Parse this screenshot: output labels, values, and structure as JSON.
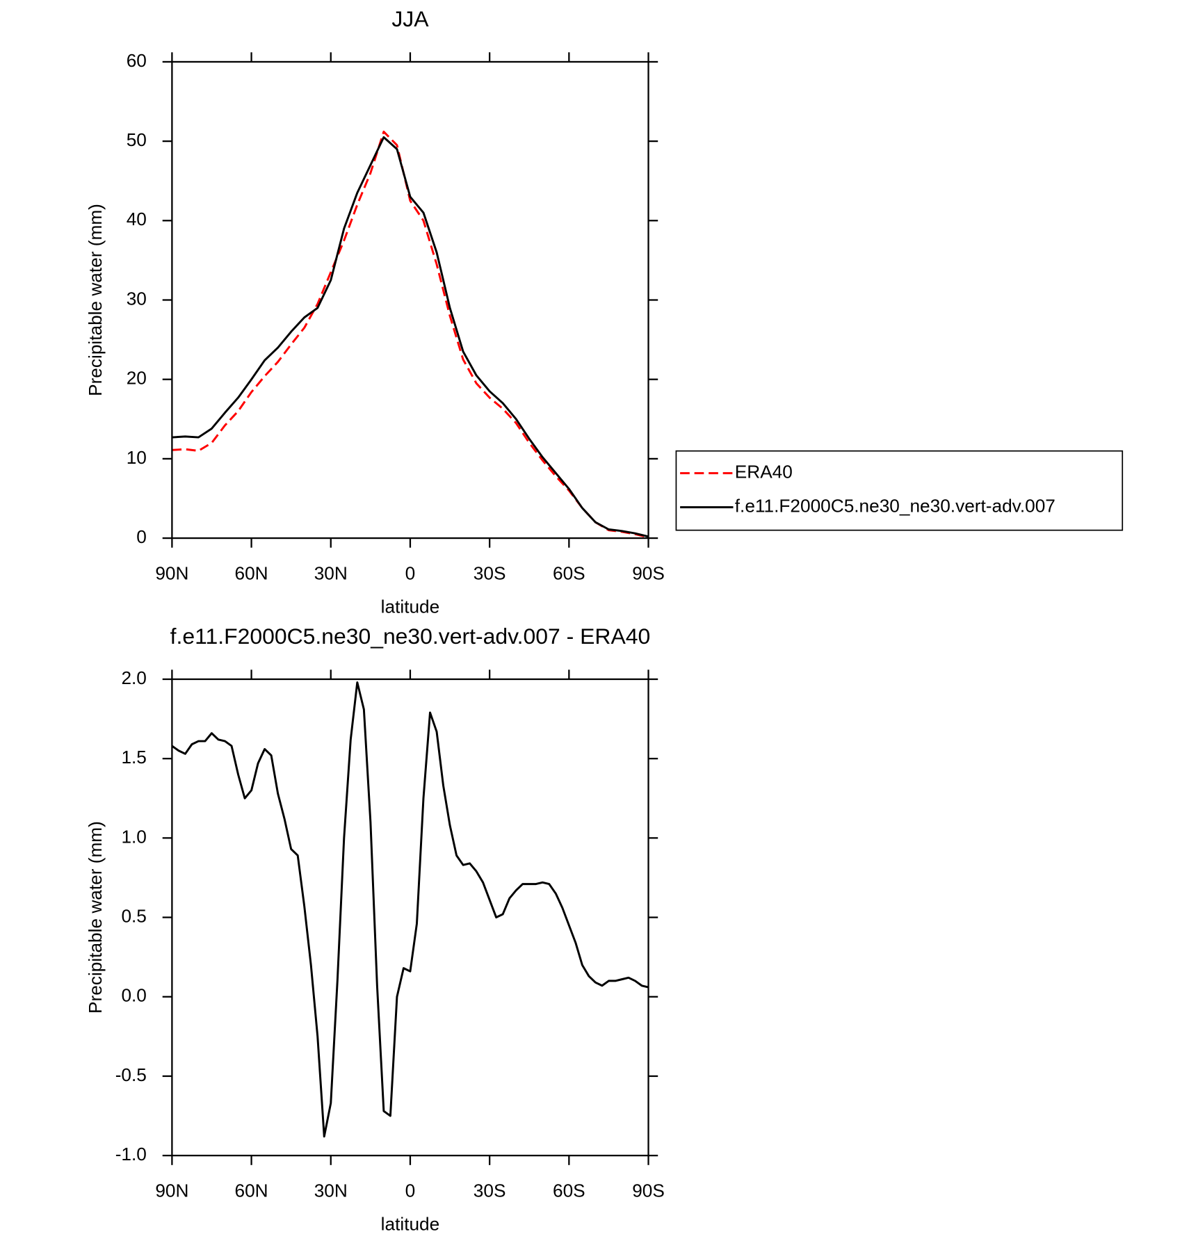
{
  "chart_data": [
    {
      "type": "line",
      "title": "JJA",
      "xlabel": "latitude",
      "ylabel": "Precipitable water (mm)",
      "x": [
        90,
        85,
        80,
        75,
        70,
        65,
        60,
        55,
        50,
        45,
        40,
        35,
        30,
        25,
        20,
        15,
        10,
        5,
        0,
        -5,
        -10,
        -15,
        -20,
        -25,
        -30,
        -35,
        -40,
        -45,
        -50,
        -55,
        -60,
        -65,
        -70,
        -75,
        -80,
        -85,
        -90
      ],
      "series": [
        {
          "name": "ERA40",
          "color": "#ff0000",
          "dash": "dashed",
          "values": [
            11.1,
            11.2,
            11.0,
            12.0,
            14.2,
            16.0,
            18.4,
            20.4,
            22.2,
            24.4,
            26.5,
            29.5,
            33.5,
            37.5,
            42.0,
            46.0,
            51.2,
            49.5,
            42.5,
            40.0,
            34.5,
            28.0,
            22.5,
            19.5,
            17.7,
            16.3,
            14.5,
            12.0,
            9.8,
            7.8,
            6.0,
            3.8,
            2.0,
            1.0,
            0.8,
            0.5,
            0.1
          ]
        },
        {
          "name": "f.e11.F2000C5.ne30_ne30.vert-adv.007",
          "color": "#000000",
          "dash": "solid",
          "values": [
            12.7,
            12.8,
            12.7,
            13.8,
            15.8,
            17.7,
            20.0,
            22.4,
            24.0,
            26.0,
            27.8,
            29.0,
            32.5,
            39.0,
            43.5,
            47.0,
            50.5,
            49.0,
            43.0,
            41.0,
            36.0,
            29.0,
            23.5,
            20.5,
            18.5,
            17.0,
            15.0,
            12.5,
            10.2,
            8.2,
            6.2,
            3.8,
            2.0,
            1.1,
            0.9,
            0.6,
            0.2
          ]
        }
      ],
      "xlim": [
        90,
        -90
      ],
      "xticks": [
        {
          "value": 90,
          "label": "90N"
        },
        {
          "value": 60,
          "label": "60N"
        },
        {
          "value": 30,
          "label": "30N"
        },
        0,
        {
          "value": -30,
          "label": "30S"
        },
        {
          "value": -60,
          "label": "60S"
        },
        {
          "value": -90,
          "label": "90S"
        }
      ],
      "ylim": [
        0,
        60
      ],
      "yticks": [
        0,
        10,
        20,
        30,
        40,
        50,
        60
      ],
      "grid": false,
      "legend": "outside-right"
    },
    {
      "type": "line",
      "title": "f.e11.F2000C5.ne30_ne30.vert-adv.007 - ERA40",
      "xlabel": "latitude",
      "ylabel": "Precipitable water (mm)",
      "x": [
        90,
        87.5,
        85,
        82.5,
        80,
        77.5,
        75,
        72.5,
        70,
        67.5,
        65,
        62.5,
        60,
        57.5,
        55,
        52.5,
        50,
        47.5,
        45,
        42.5,
        40,
        37.5,
        35,
        32.5,
        30,
        27.5,
        25,
        22.5,
        20,
        17.5,
        15,
        12.5,
        10,
        7.5,
        5,
        2.5,
        0,
        -2.5,
        -5,
        -7.5,
        -10,
        -12.5,
        -15,
        -17.5,
        -20,
        -22.5,
        -25,
        -27.5,
        -30,
        -32.5,
        -35,
        -37.5,
        -40,
        -42.5,
        -45,
        -47.5,
        -50,
        -52.5,
        -55,
        -57.5,
        -60,
        -62.5,
        -65,
        -67.5,
        -70,
        -72.5,
        -75,
        -77.5,
        -80,
        -82.5,
        -85,
        -87.5,
        -90
      ],
      "values": [
        1.58,
        1.55,
        1.53,
        1.59,
        1.61,
        1.61,
        1.66,
        1.62,
        1.61,
        1.58,
        1.4,
        1.25,
        1.3,
        1.47,
        1.56,
        1.52,
        1.28,
        1.12,
        0.93,
        0.89,
        0.57,
        0.2,
        -0.25,
        -0.88,
        -0.67,
        0.1,
        1.0,
        1.62,
        1.98,
        1.81,
        1.1,
        0.07,
        -0.72,
        -0.75,
        0.0,
        0.18,
        0.16,
        0.46,
        1.25,
        1.79,
        1.67,
        1.33,
        1.08,
        0.89,
        0.83,
        0.84,
        0.79,
        0.72,
        0.61,
        0.5,
        0.52,
        0.62,
        0.67,
        0.71,
        0.71,
        0.71,
        0.72,
        0.71,
        0.65,
        0.56,
        0.45,
        0.34,
        0.2,
        0.13,
        0.09,
        0.07,
        0.1,
        0.1,
        0.11,
        0.12,
        0.1,
        0.07,
        0.06
      ],
      "color": "#000000",
      "xlim": [
        90,
        -90
      ],
      "xticks": [
        {
          "value": 90,
          "label": "90N"
        },
        {
          "value": 60,
          "label": "60N"
        },
        {
          "value": 30,
          "label": "30N"
        },
        0,
        {
          "value": -30,
          "label": "30S"
        },
        {
          "value": -60,
          "label": "60S"
        },
        {
          "value": -90,
          "label": "90S"
        }
      ],
      "ylim": [
        -1,
        2
      ],
      "yticks": [
        {
          "value": -1,
          "label": "-1.0"
        },
        {
          "value": -0.5,
          "label": "-0.5"
        },
        {
          "value": 0,
          "label": "0.0"
        },
        {
          "value": 0.5,
          "label": "0.5"
        },
        {
          "value": 1,
          "label": "1.0"
        },
        {
          "value": 1.5,
          "label": "1.5"
        },
        {
          "value": 2,
          "label": "2.0"
        }
      ],
      "grid": false
    }
  ]
}
